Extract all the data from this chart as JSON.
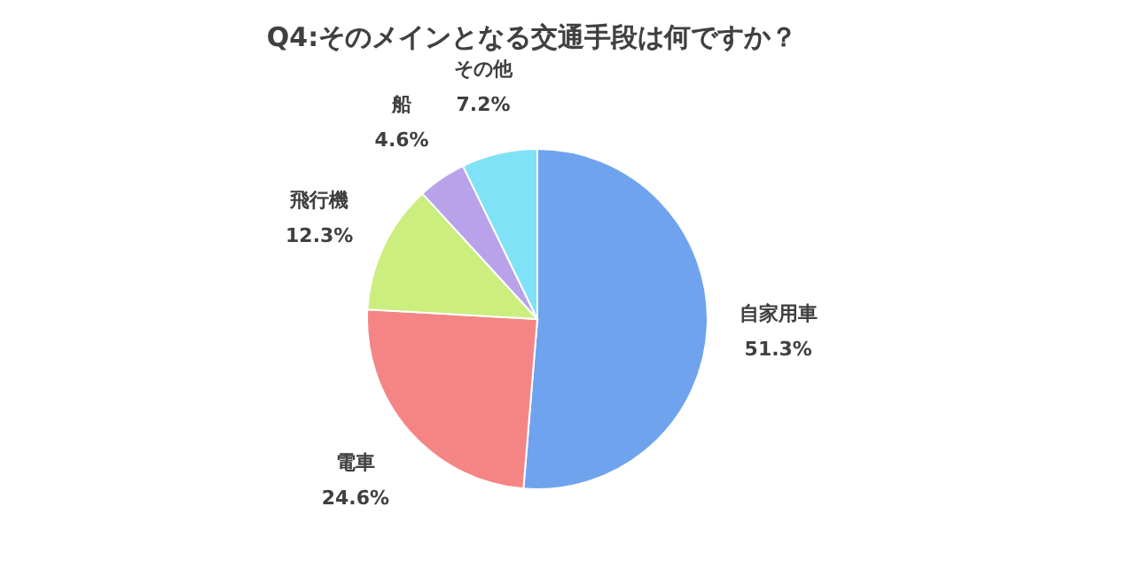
{
  "chart_data": {
    "type": "pie",
    "title": "Q4:そのメインとなる交通手段は何ですか？",
    "categories": [
      "自家用車",
      "電車",
      "飛行機",
      "船",
      "その他"
    ],
    "values": [
      51.3,
      24.6,
      12.3,
      4.6,
      7.2
    ],
    "colors": [
      "#6fa3ee",
      "#f58585",
      "#cbee7e",
      "#b8a2ea",
      "#80e2f6"
    ],
    "value_labels": [
      "51.3%",
      "24.6%",
      "12.3%",
      "4.6%",
      "7.2%"
    ]
  }
}
